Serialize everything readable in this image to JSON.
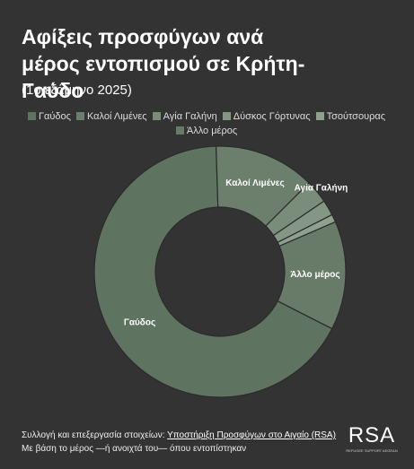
{
  "chart_data": {
    "type": "donut",
    "title": "Αφίξεις προσφύγων ανά μέρος εντοπισμού σε Κρήτη-Γαύδο",
    "subtitle": "(1ο εξάμηνο 2025)",
    "categories": [
      "Γαύδος",
      "Καλοί Λιμένες",
      "Αγία Γαλήνη",
      "Δύσκος Γόρτυνας",
      "Τσούτσουρας",
      "Άλλο μέρος"
    ],
    "values": [
      67,
      13,
      3,
      2,
      1,
      14
    ],
    "colors": [
      "#5f7361",
      "#6b7f6c",
      "#7a8d7a",
      "#849684",
      "#8fa08f",
      "#677b68"
    ]
  },
  "footer": {
    "source_prefix": "Συλλογή και επεξεργασία στοιχείων:",
    "source_link": "Υποστήριξη Προσφύγων στο Αιγαίο (RSA)",
    "note": "Με βάση το μέρος —ή ανοιχτά του— όπου εντοπίστηκαν",
    "logo": "RSA",
    "logo_sub": "REFUGEE SUPPORT AEGEAN"
  }
}
